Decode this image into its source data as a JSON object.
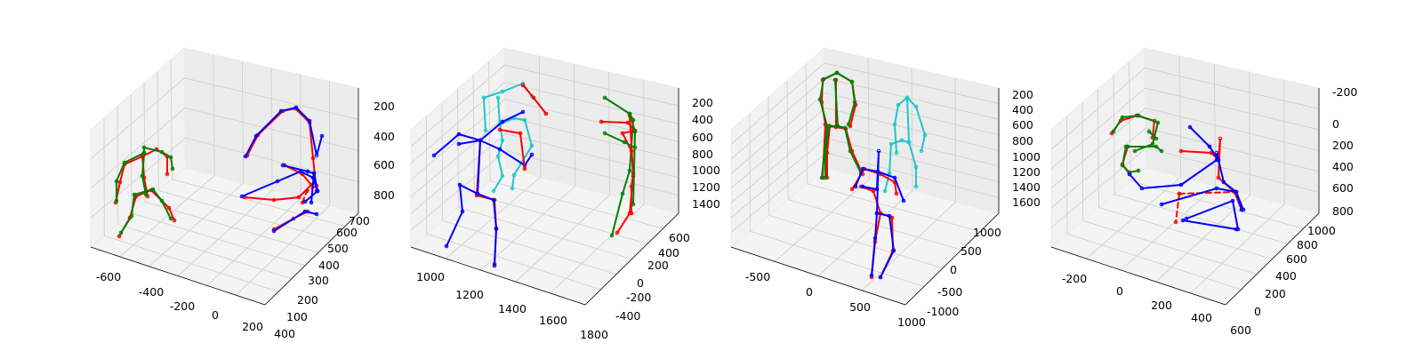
{
  "colors": {
    "ground_truth": "#ff0000",
    "pred_a": "#008000",
    "pred_b": "#0000ff",
    "pred_c": "#1ec8c8"
  },
  "chart_data": [
    {
      "type": "3d-skeleton-plot",
      "xticks": [
        "-600",
        "-400",
        "-200",
        "0",
        "200",
        "400"
      ],
      "yticks": [
        "100",
        "200",
        "300",
        "400",
        "500",
        "600",
        "700"
      ],
      "zticks": [
        "200",
        "400",
        "600",
        "800"
      ]
    },
    {
      "type": "3d-skeleton-plot",
      "xticks": [
        "1000",
        "1200",
        "1400",
        "1600",
        "1800"
      ],
      "yticks": [
        "-400",
        "-200",
        "0",
        "200",
        "400",
        "600"
      ],
      "zticks": [
        "200",
        "400",
        "600",
        "800",
        "1000",
        "1200",
        "1400"
      ]
    },
    {
      "type": "3d-skeleton-plot",
      "xticks": [
        "-500",
        "0",
        "500",
        "1000"
      ],
      "yticks": [
        "-1000",
        "-500",
        "0",
        "500",
        "1000"
      ],
      "zticks": [
        "200",
        "400",
        "600",
        "800",
        "1000",
        "1200",
        "1400",
        "1600"
      ]
    },
    {
      "type": "3d-skeleton-plot",
      "xticks": [
        "-200",
        "0",
        "200",
        "400",
        "600"
      ],
      "yticks": [
        "0",
        "200",
        "400",
        "600",
        "800",
        "1000"
      ],
      "zticks": [
        "-200",
        "0",
        "200",
        "400",
        "600",
        "800"
      ]
    }
  ]
}
